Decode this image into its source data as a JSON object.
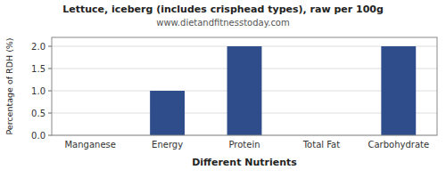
{
  "chart_data": {
    "type": "bar",
    "title": "Lettuce, iceberg (includes crisphead types), raw per 100g",
    "subtitle": "www.dietandfitnesstoday.com",
    "xlabel": "Different Nutrients",
    "ylabel": "Percentage of RDH (%)",
    "categories": [
      "Manganese",
      "Energy",
      "Protein",
      "Total Fat",
      "Carbohydrate"
    ],
    "values": [
      0.0,
      1.0,
      2.0,
      0.0,
      2.0
    ],
    "color": "#2e4d8a",
    "ylim": [
      0,
      2.2
    ],
    "yticks": [
      {
        "value": 0,
        "label": "0.0"
      },
      0.5,
      {
        "value": 1,
        "label": "1.0"
      },
      1.5,
      {
        "value": 2,
        "label": "2.0"
      }
    ],
    "grid": true
  }
}
